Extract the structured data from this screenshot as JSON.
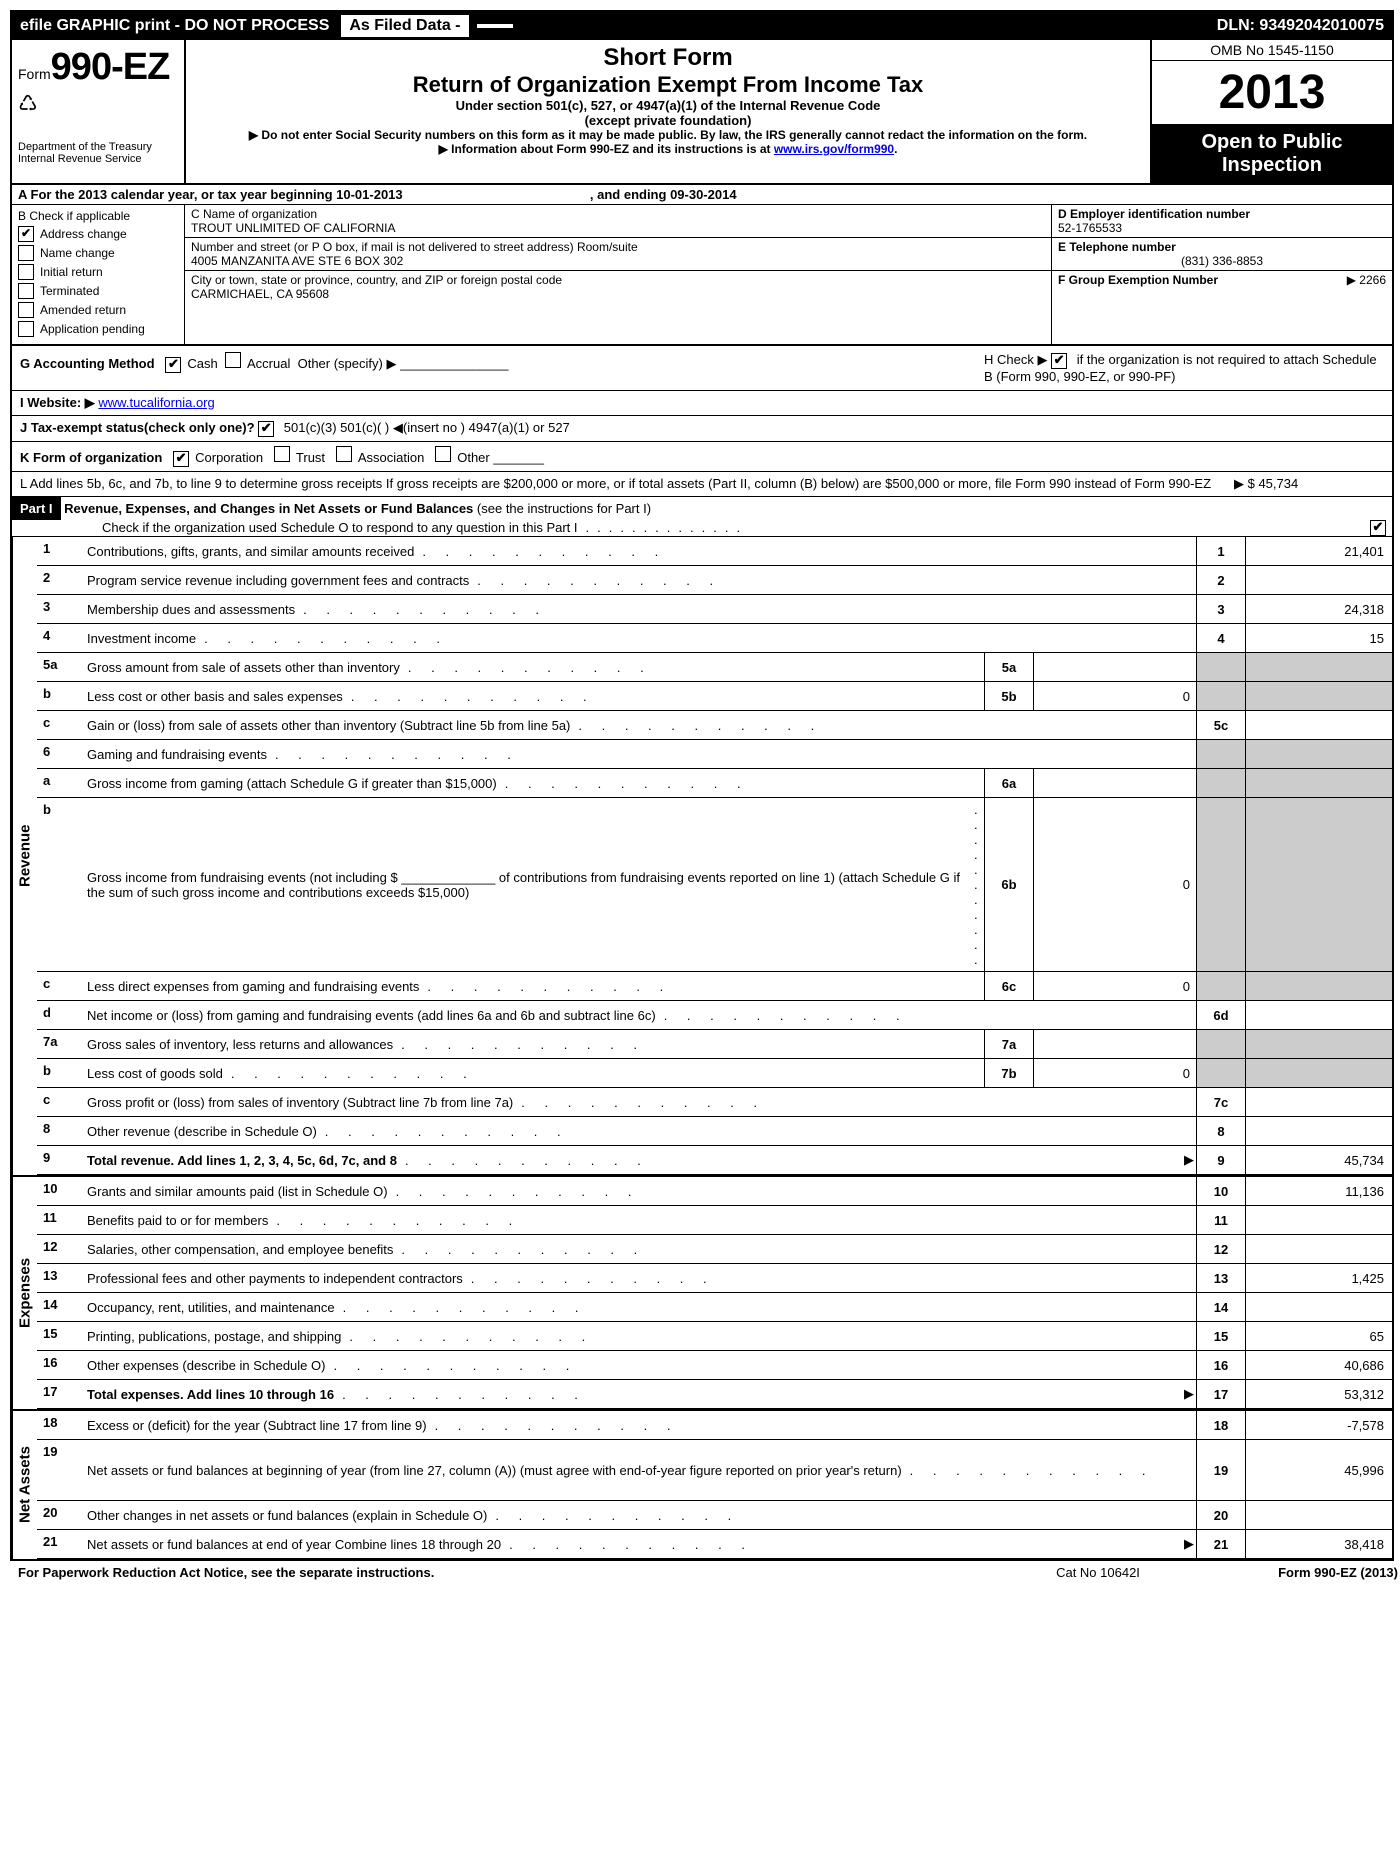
{
  "topbar": {
    "left": "efile GRAPHIC print - DO NOT PROCESS",
    "mid": "As Filed Data -",
    "dln": "DLN: 93492042010075"
  },
  "header": {
    "form_prefix": "Form",
    "form_number": "990-EZ",
    "dept1": "Department of the Treasury",
    "dept2": "Internal Revenue Service",
    "short_form": "Short Form",
    "title": "Return of Organization Exempt From Income Tax",
    "subtitle": "Under section 501(c), 527, or 4947(a)(1) of the Internal Revenue Code",
    "except": "(except private foundation)",
    "warn1": "▶ Do not enter Social Security numbers on this form as it may be made public. By law, the IRS generally cannot redact the information on the form.",
    "warn2_pre": "▶ Information about Form 990-EZ and its instructions is at ",
    "warn2_link": "www.irs.gov/form990",
    "omb": "OMB No 1545-1150",
    "year": "2013",
    "open1": "Open to Public",
    "open2": "Inspection"
  },
  "rowA": {
    "text_pre": "A  For the 2013 calendar year, or tax year beginning ",
    "begin": "10-01-2013",
    "text_mid": ", and ending ",
    "end": "09-30-2014"
  },
  "colB": {
    "title": "B  Check if applicable",
    "items": [
      {
        "label": "Address change",
        "checked": true
      },
      {
        "label": "Name change",
        "checked": false
      },
      {
        "label": "Initial return",
        "checked": false
      },
      {
        "label": "Terminated",
        "checked": false
      },
      {
        "label": "Amended return",
        "checked": false
      },
      {
        "label": "Application pending",
        "checked": false
      }
    ]
  },
  "colC": {
    "name_label": "C Name of organization",
    "name": "TROUT UNLIMITED OF CALIFORNIA",
    "street_label": "Number and street (or P O box, if mail is not delivered to street address) Room/suite",
    "street": "4005 MANZANITA AVE STE 6 BOX 302",
    "city_label": "City or town, state or province, country, and ZIP or foreign postal code",
    "city": "CARMICHAEL, CA  95608"
  },
  "colDEF": {
    "d_label": "D Employer identification number",
    "d_val": "52-1765533",
    "e_label": "E Telephone number",
    "e_val": "(831) 336-8853",
    "f_label": "F Group Exemption Number",
    "f_val": "▶ 2266"
  },
  "lineG": {
    "label": "G Accounting Method",
    "cash": "Cash",
    "accrual": "Accrual",
    "other": "Other (specify) ▶"
  },
  "lineH": {
    "text1": "H  Check ▶",
    "text2": "if the organization is not required to attach Schedule B (Form 990, 990-EZ, or 990-PF)"
  },
  "lineI": {
    "label": "I Website: ▶",
    "url": "www.tucalifornia.org"
  },
  "lineJ": {
    "text": "J Tax-exempt status(check only one)?",
    "opts": "501(c)(3)       501(c)(  ) ◀(insert no )     4947(a)(1) or      527"
  },
  "lineK": {
    "label": "K Form of organization",
    "corp": "Corporation",
    "trust": "Trust",
    "assoc": "Association",
    "other": "Other"
  },
  "lineL": {
    "text": "L Add lines 5b, 6c, and 7b, to line 9 to determine gross receipts  If gross receipts are $200,000 or more, or if total assets (Part II, column (B) below) are $500,000 or more, file Form 990 instead of Form 990-EZ",
    "amount": "▶ $ 45,734"
  },
  "part1": {
    "label": "Part I",
    "title": "Revenue, Expenses, and Changes in Net Assets or Fund Balances",
    "instr": "(see the instructions for Part I)",
    "check": "Check if the organization used Schedule O to respond to any question in this Part I"
  },
  "sections": {
    "revenue": "Revenue",
    "expenses": "Expenses",
    "netassets": "Net Assets"
  },
  "lines": [
    {
      "num": "1",
      "desc": "Contributions, gifts, grants, and similar amounts received",
      "end_num": "1",
      "end_val": "21,401"
    },
    {
      "num": "2",
      "desc": "Program service revenue including government fees and contracts",
      "end_num": "2",
      "end_val": ""
    },
    {
      "num": "3",
      "desc": "Membership dues and assessments",
      "end_num": "3",
      "end_val": "24,318"
    },
    {
      "num": "4",
      "desc": "Investment income",
      "end_num": "4",
      "end_val": "15"
    },
    {
      "num": "5a",
      "desc": "Gross amount from sale of assets other than inventory",
      "mid_num": "5a",
      "mid_val": "",
      "shade_end": true
    },
    {
      "num": "b",
      "desc": "Less cost or other basis and sales expenses",
      "mid_num": "5b",
      "mid_val": "0",
      "shade_end": true
    },
    {
      "num": "c",
      "desc": "Gain or (loss) from sale of assets other than inventory (Subtract line 5b from line 5a)",
      "end_num": "5c",
      "end_val": ""
    },
    {
      "num": "6",
      "desc": "Gaming and fundraising events",
      "shade_end": true,
      "no_cols": true
    },
    {
      "num": "a",
      "desc": "Gross income from gaming (attach Schedule G if greater than $15,000)",
      "mid_num": "6a",
      "mid_val": "",
      "shade_end": true
    },
    {
      "num": "b",
      "desc": "Gross income from fundraising events (not including $ _____________ of contributions from fundraising events reported on line 1) (attach Schedule G if the sum of such gross income and contributions exceeds $15,000)",
      "mid_num": "6b",
      "mid_val": "0",
      "shade_end": true,
      "tall": true
    },
    {
      "num": "c",
      "desc": "Less direct expenses from gaming and fundraising events",
      "mid_num": "6c",
      "mid_val": "0",
      "shade_end": true
    },
    {
      "num": "d",
      "desc": "Net income or (loss) from gaming and fundraising events (add lines 6a and 6b and subtract line 6c)",
      "end_num": "6d",
      "end_val": ""
    },
    {
      "num": "7a",
      "desc": "Gross sales of inventory, less returns and allowances",
      "mid_num": "7a",
      "mid_val": "",
      "shade_end": true
    },
    {
      "num": "b",
      "desc": "Less cost of goods sold",
      "mid_num": "7b",
      "mid_val": "0",
      "shade_end": true
    },
    {
      "num": "c",
      "desc": "Gross profit or (loss) from sales of inventory (Subtract line 7b from line 7a)",
      "end_num": "7c",
      "end_val": ""
    },
    {
      "num": "8",
      "desc": "Other revenue (describe in Schedule O)",
      "end_num": "8",
      "end_val": ""
    },
    {
      "num": "9",
      "desc": "Total revenue. Add lines 1, 2, 3, 4, 5c, 6d, 7c, and 8",
      "end_num": "9",
      "end_val": "45,734",
      "bold": true,
      "arrow": true
    }
  ],
  "exp_lines": [
    {
      "num": "10",
      "desc": "Grants and similar amounts paid (list in Schedule O)",
      "end_num": "10",
      "end_val": "11,136"
    },
    {
      "num": "11",
      "desc": "Benefits paid to or for members",
      "end_num": "11",
      "end_val": ""
    },
    {
      "num": "12",
      "desc": "Salaries, other compensation, and employee benefits",
      "end_num": "12",
      "end_val": ""
    },
    {
      "num": "13",
      "desc": "Professional fees and other payments to independent contractors",
      "end_num": "13",
      "end_val": "1,425"
    },
    {
      "num": "14",
      "desc": "Occupancy, rent, utilities, and maintenance",
      "end_num": "14",
      "end_val": ""
    },
    {
      "num": "15",
      "desc": "Printing, publications, postage, and shipping",
      "end_num": "15",
      "end_val": "65"
    },
    {
      "num": "16",
      "desc": "Other expenses (describe in Schedule O)",
      "end_num": "16",
      "end_val": "40,686"
    },
    {
      "num": "17",
      "desc": "Total expenses. Add lines 10 through 16",
      "end_num": "17",
      "end_val": "53,312",
      "bold": true,
      "arrow": true
    }
  ],
  "na_lines": [
    {
      "num": "18",
      "desc": "Excess or (deficit) for the year (Subtract line 17 from line 9)",
      "end_num": "18",
      "end_val": "-7,578"
    },
    {
      "num": "19",
      "desc": "Net assets or fund balances at beginning of year (from line 27, column (A)) (must agree with end-of-year figure reported on prior year's return)",
      "end_num": "19",
      "end_val": "45,996",
      "tall": true
    },
    {
      "num": "20",
      "desc": "Other changes in net assets or fund balances (explain in Schedule O)",
      "end_num": "20",
      "end_val": ""
    },
    {
      "num": "21",
      "desc": "Net assets or fund balances at end of year Combine lines 18 through 20",
      "end_num": "21",
      "end_val": "38,418",
      "arrow": true
    }
  ],
  "footer": {
    "left": "For Paperwork Reduction Act Notice, see the separate instructions.",
    "mid": "Cat No 10642I",
    "right": "Form 990-EZ (2013)"
  }
}
